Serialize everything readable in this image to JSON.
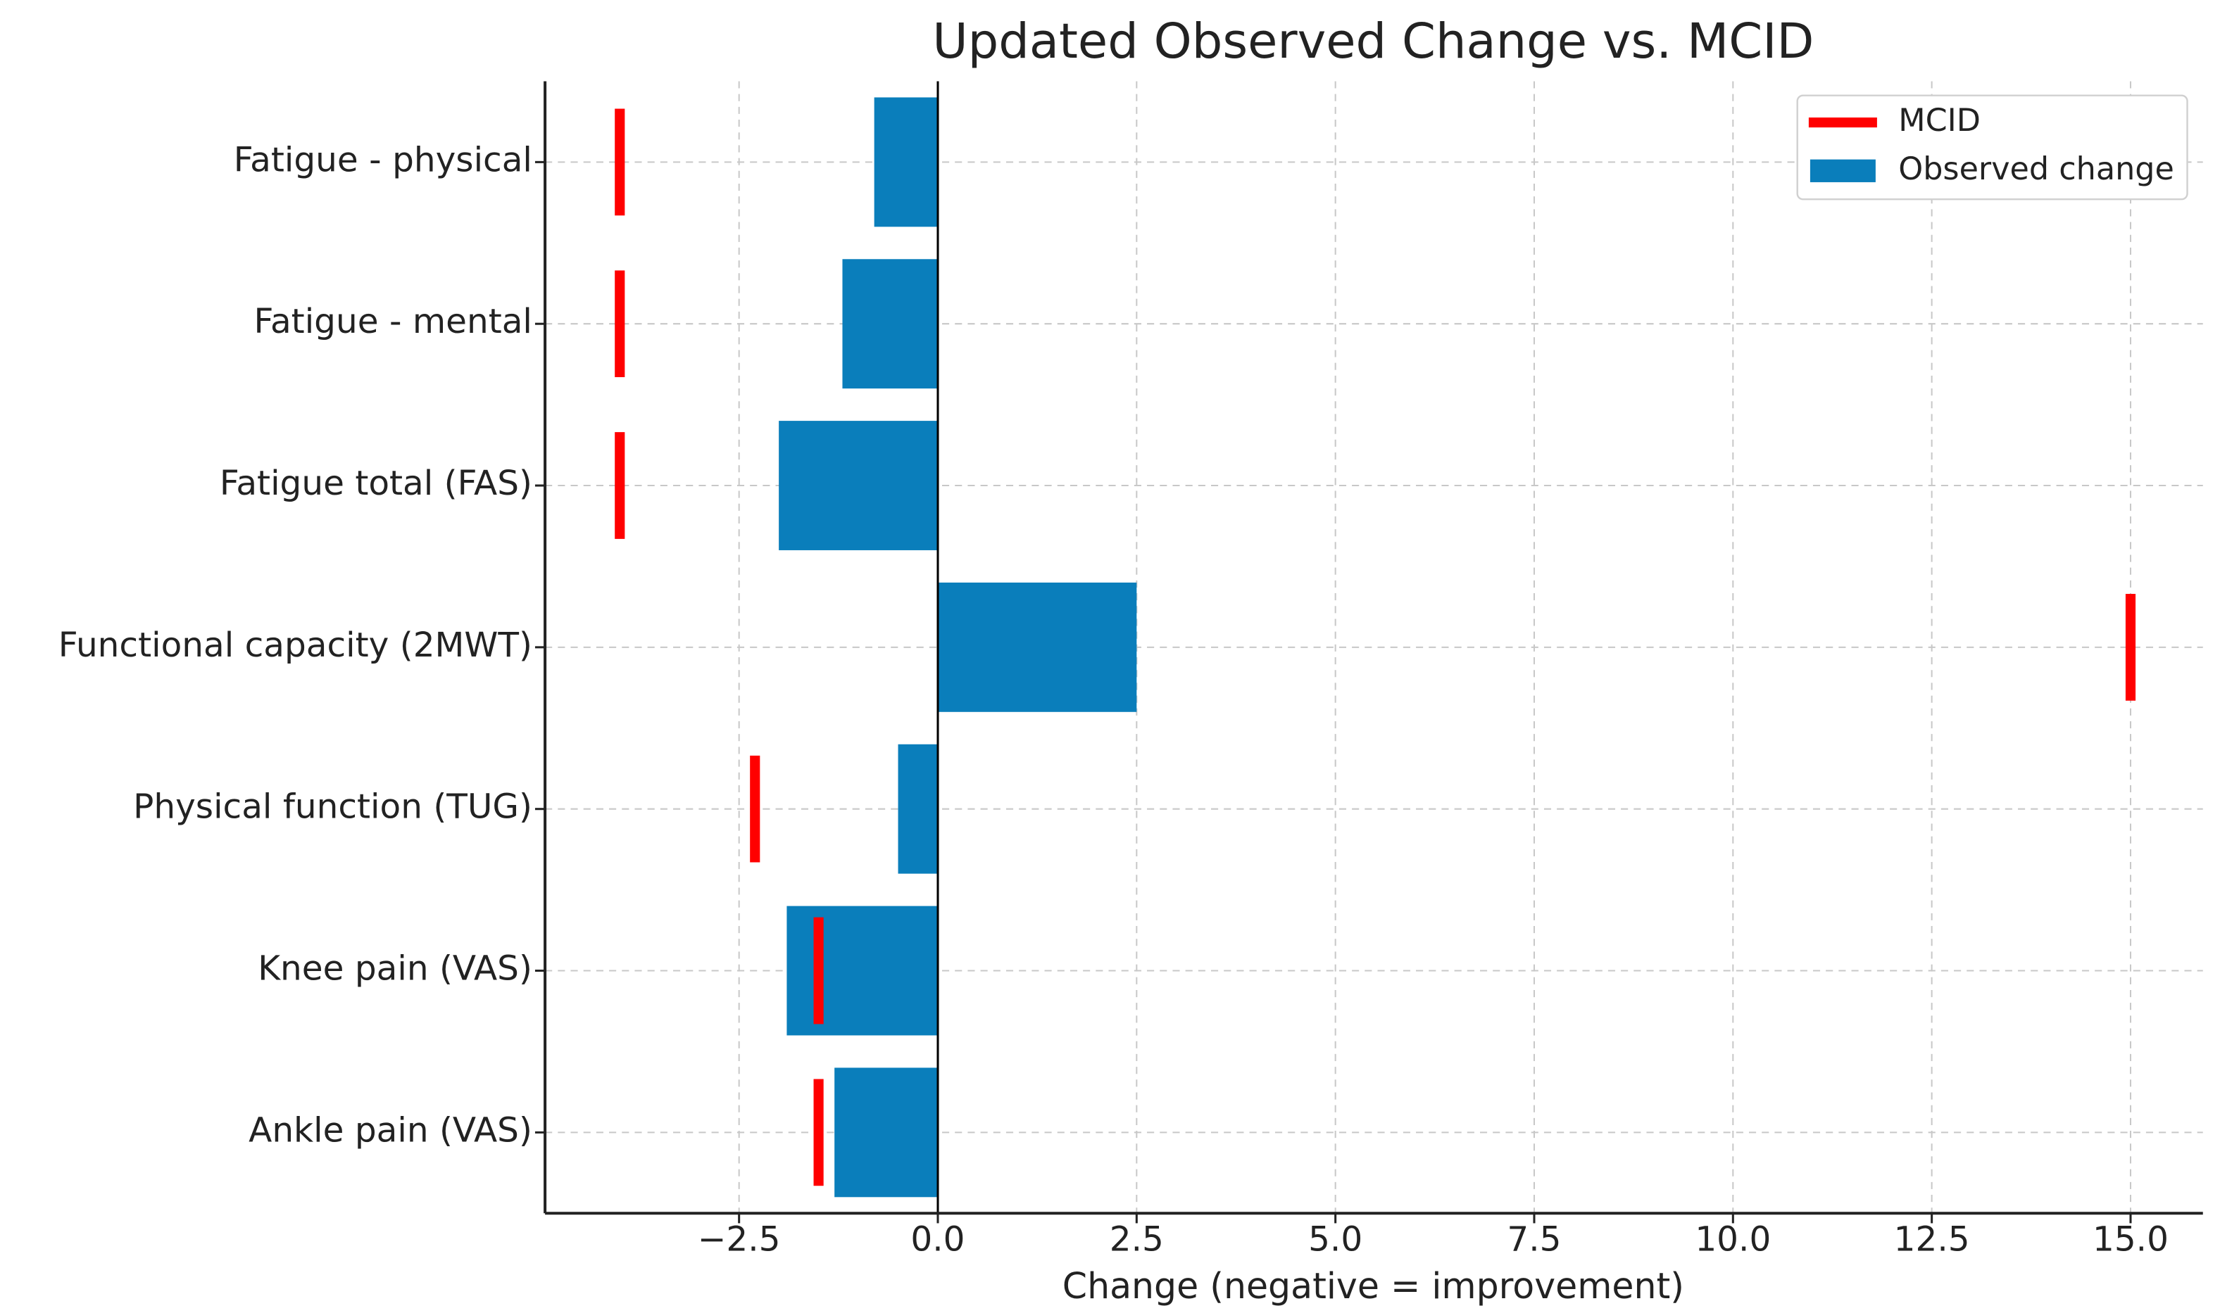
{
  "chart_data": {
    "type": "barh",
    "title": "Updated Observed Change vs. MCID",
    "x_label": "Change (negative = improvement)",
    "categories": [
      "Fatigue - physical",
      "Fatigue - mental",
      "Fatigue total (FAS)",
      "Functional capacity (2MWT)",
      "Physical function (TUG)",
      "Knee pain (VAS)",
      "Ankle pain (VAS)"
    ],
    "series": [
      {
        "name": "Observed change",
        "color": "#0a7ebb",
        "values": [
          -0.8,
          -1.2,
          -2.0,
          2.5,
          -0.5,
          -1.9,
          -1.3
        ]
      },
      {
        "name": "MCID",
        "color": "#ff0000",
        "values": [
          -4.0,
          -4.0,
          -4.0,
          15.0,
          -2.3,
          -1.5,
          -1.5
        ]
      }
    ],
    "xlim": [
      -4.94,
      15.91
    ],
    "xticks": [
      {
        "value": -2.5,
        "label": "−2.5"
      },
      {
        "value": 0,
        "label": "0.0"
      },
      {
        "value": 2.5,
        "label": "2.5"
      },
      {
        "value": 5,
        "label": "5.0"
      },
      {
        "value": 7.5,
        "label": "7.5"
      },
      {
        "value": 10,
        "label": "10.0"
      },
      {
        "value": 12.5,
        "label": "12.5"
      },
      {
        "value": 15,
        "label": "15.0"
      }
    ],
    "grid": true,
    "legend": "upper right"
  }
}
